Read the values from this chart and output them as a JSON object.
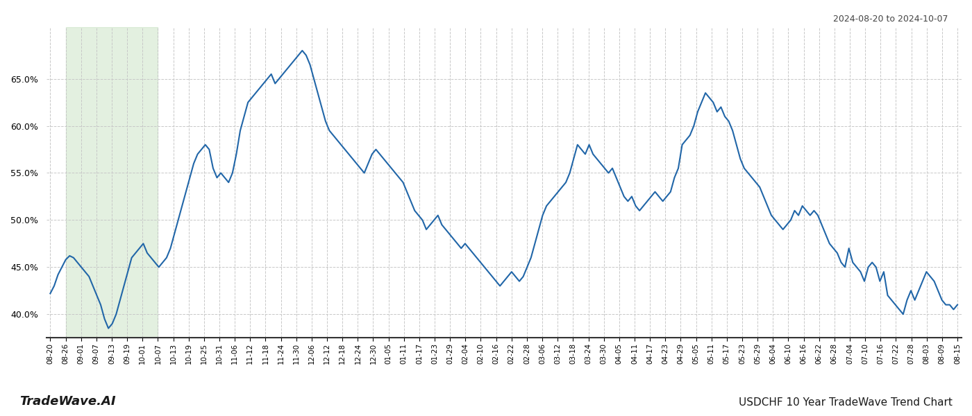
{
  "title_top_right": "2024-08-20 to 2024-10-07",
  "title_bottom_left": "TradeWave.AI",
  "title_bottom_right": "USDCHF 10 Year TradeWave Trend Chart",
  "line_color": "#2166a8",
  "line_width": 1.5,
  "background_color": "#ffffff",
  "grid_color": "#c8c8c8",
  "grid_linestyle": "--",
  "shaded_region_color": "#cce5c8",
  "shaded_region_alpha": 0.55,
  "ylim": [
    37.5,
    70.5
  ],
  "yticks": [
    40.0,
    45.0,
    50.0,
    55.0,
    60.0,
    65.0
  ],
  "xtick_labels": [
    "08-20",
    "08-26",
    "09-01",
    "09-07",
    "09-13",
    "09-19",
    "10-01",
    "10-07",
    "10-13",
    "10-19",
    "10-25",
    "10-31",
    "11-06",
    "11-12",
    "11-18",
    "11-24",
    "11-30",
    "12-06",
    "12-12",
    "12-18",
    "12-24",
    "12-30",
    "01-05",
    "01-11",
    "01-17",
    "01-23",
    "01-29",
    "02-04",
    "02-10",
    "02-16",
    "02-22",
    "02-28",
    "03-06",
    "03-12",
    "03-18",
    "03-24",
    "03-30",
    "04-05",
    "04-11",
    "04-17",
    "04-23",
    "04-29",
    "05-05",
    "05-11",
    "05-17",
    "05-23",
    "05-29",
    "06-04",
    "06-10",
    "06-16",
    "06-22",
    "06-28",
    "07-04",
    "07-10",
    "07-16",
    "07-22",
    "07-28",
    "08-03",
    "08-09",
    "08-15"
  ],
  "shaded_x_start_label": "08-26",
  "shaded_x_end_label": "10-07",
  "values": [
    42.2,
    43.0,
    44.2,
    45.0,
    45.8,
    46.2,
    46.0,
    45.5,
    45.0,
    44.5,
    44.0,
    43.0,
    42.0,
    41.0,
    39.5,
    38.5,
    39.0,
    40.0,
    41.5,
    43.0,
    44.5,
    46.0,
    46.5,
    47.0,
    47.5,
    46.5,
    46.0,
    45.5,
    45.0,
    45.5,
    46.0,
    47.0,
    48.5,
    50.0,
    51.5,
    53.0,
    54.5,
    56.0,
    57.0,
    57.5,
    58.0,
    57.5,
    55.5,
    54.5,
    55.0,
    54.5,
    54.0,
    55.0,
    57.0,
    59.5,
    61.0,
    62.5,
    63.0,
    63.5,
    64.0,
    64.5,
    65.0,
    65.5,
    64.5,
    65.0,
    65.5,
    66.0,
    66.5,
    67.0,
    67.5,
    68.0,
    67.5,
    66.5,
    65.0,
    63.5,
    62.0,
    60.5,
    59.5,
    59.0,
    58.5,
    58.0,
    57.5,
    57.0,
    56.5,
    56.0,
    55.5,
    55.0,
    56.0,
    57.0,
    57.5,
    57.0,
    56.5,
    56.0,
    55.5,
    55.0,
    54.5,
    54.0,
    53.0,
    52.0,
    51.0,
    50.5,
    50.0,
    49.0,
    49.5,
    50.0,
    50.5,
    49.5,
    49.0,
    48.5,
    48.0,
    47.5,
    47.0,
    47.5,
    47.0,
    46.5,
    46.0,
    45.5,
    45.0,
    44.5,
    44.0,
    43.5,
    43.0,
    43.5,
    44.0,
    44.5,
    44.0,
    43.5,
    44.0,
    45.0,
    46.0,
    47.5,
    49.0,
    50.5,
    51.5,
    52.0,
    52.5,
    53.0,
    53.5,
    54.0,
    55.0,
    56.5,
    58.0,
    57.5,
    57.0,
    58.0,
    57.0,
    56.5,
    56.0,
    55.5,
    55.0,
    55.5,
    54.5,
    53.5,
    52.5,
    52.0,
    52.5,
    51.5,
    51.0,
    51.5,
    52.0,
    52.5,
    53.0,
    52.5,
    52.0,
    52.5,
    53.0,
    54.5,
    55.5,
    58.0,
    58.5,
    59.0,
    60.0,
    61.5,
    62.5,
    63.5,
    63.0,
    62.5,
    61.5,
    62.0,
    61.0,
    60.5,
    59.5,
    58.0,
    56.5,
    55.5,
    55.0,
    54.5,
    54.0,
    53.5,
    52.5,
    51.5,
    50.5,
    50.0,
    49.5,
    49.0,
    49.5,
    50.0,
    51.0,
    50.5,
    51.5,
    51.0,
    50.5,
    51.0,
    50.5,
    49.5,
    48.5,
    47.5,
    47.0,
    46.5,
    45.5,
    45.0,
    47.0,
    45.5,
    45.0,
    44.5,
    43.5,
    45.0,
    45.5,
    45.0,
    43.5,
    44.5,
    42.0,
    41.5,
    41.0,
    40.5,
    40.0,
    41.5,
    42.5,
    41.5,
    42.5,
    43.5,
    44.5,
    44.0,
    43.5,
    42.5,
    41.5,
    41.0,
    41.0,
    40.5,
    41.0
  ]
}
